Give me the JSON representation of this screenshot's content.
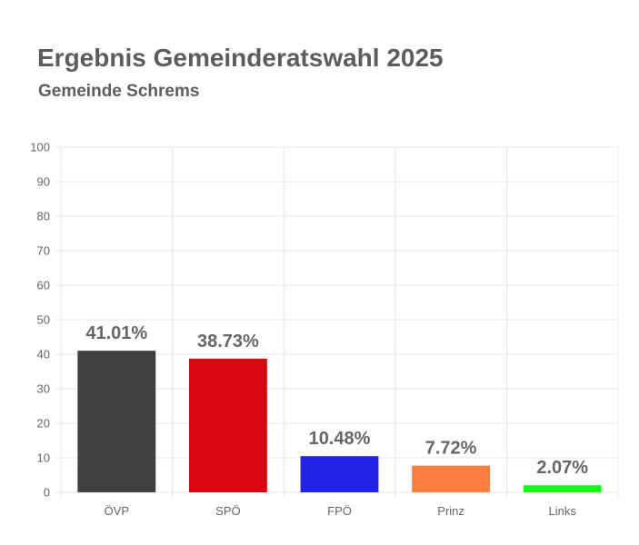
{
  "title": "Ergebnis Gemeinderatswahl 2025",
  "subtitle": "Gemeinde Schrems",
  "chart_data": {
    "type": "bar",
    "title": "Ergebnis Gemeinderatswahl 2025",
    "subtitle": "Gemeinde Schrems",
    "categories": [
      "ÖVP",
      "SPÖ",
      "FPÖ",
      "Prinz",
      "Links"
    ],
    "values": [
      41.01,
      38.73,
      10.48,
      7.72,
      2.07
    ],
    "data_labels": [
      "41.01%",
      "38.73%",
      "10.48%",
      "7.72%",
      "2.07%"
    ],
    "colors": [
      "#404040",
      "#d9070f",
      "#2323e6",
      "#ff7f40",
      "#17f617"
    ],
    "ylim": [
      0,
      100
    ],
    "yticks": [
      0,
      10,
      20,
      30,
      40,
      50,
      60,
      70,
      80,
      90,
      100
    ],
    "grid": true,
    "legend": "none"
  }
}
